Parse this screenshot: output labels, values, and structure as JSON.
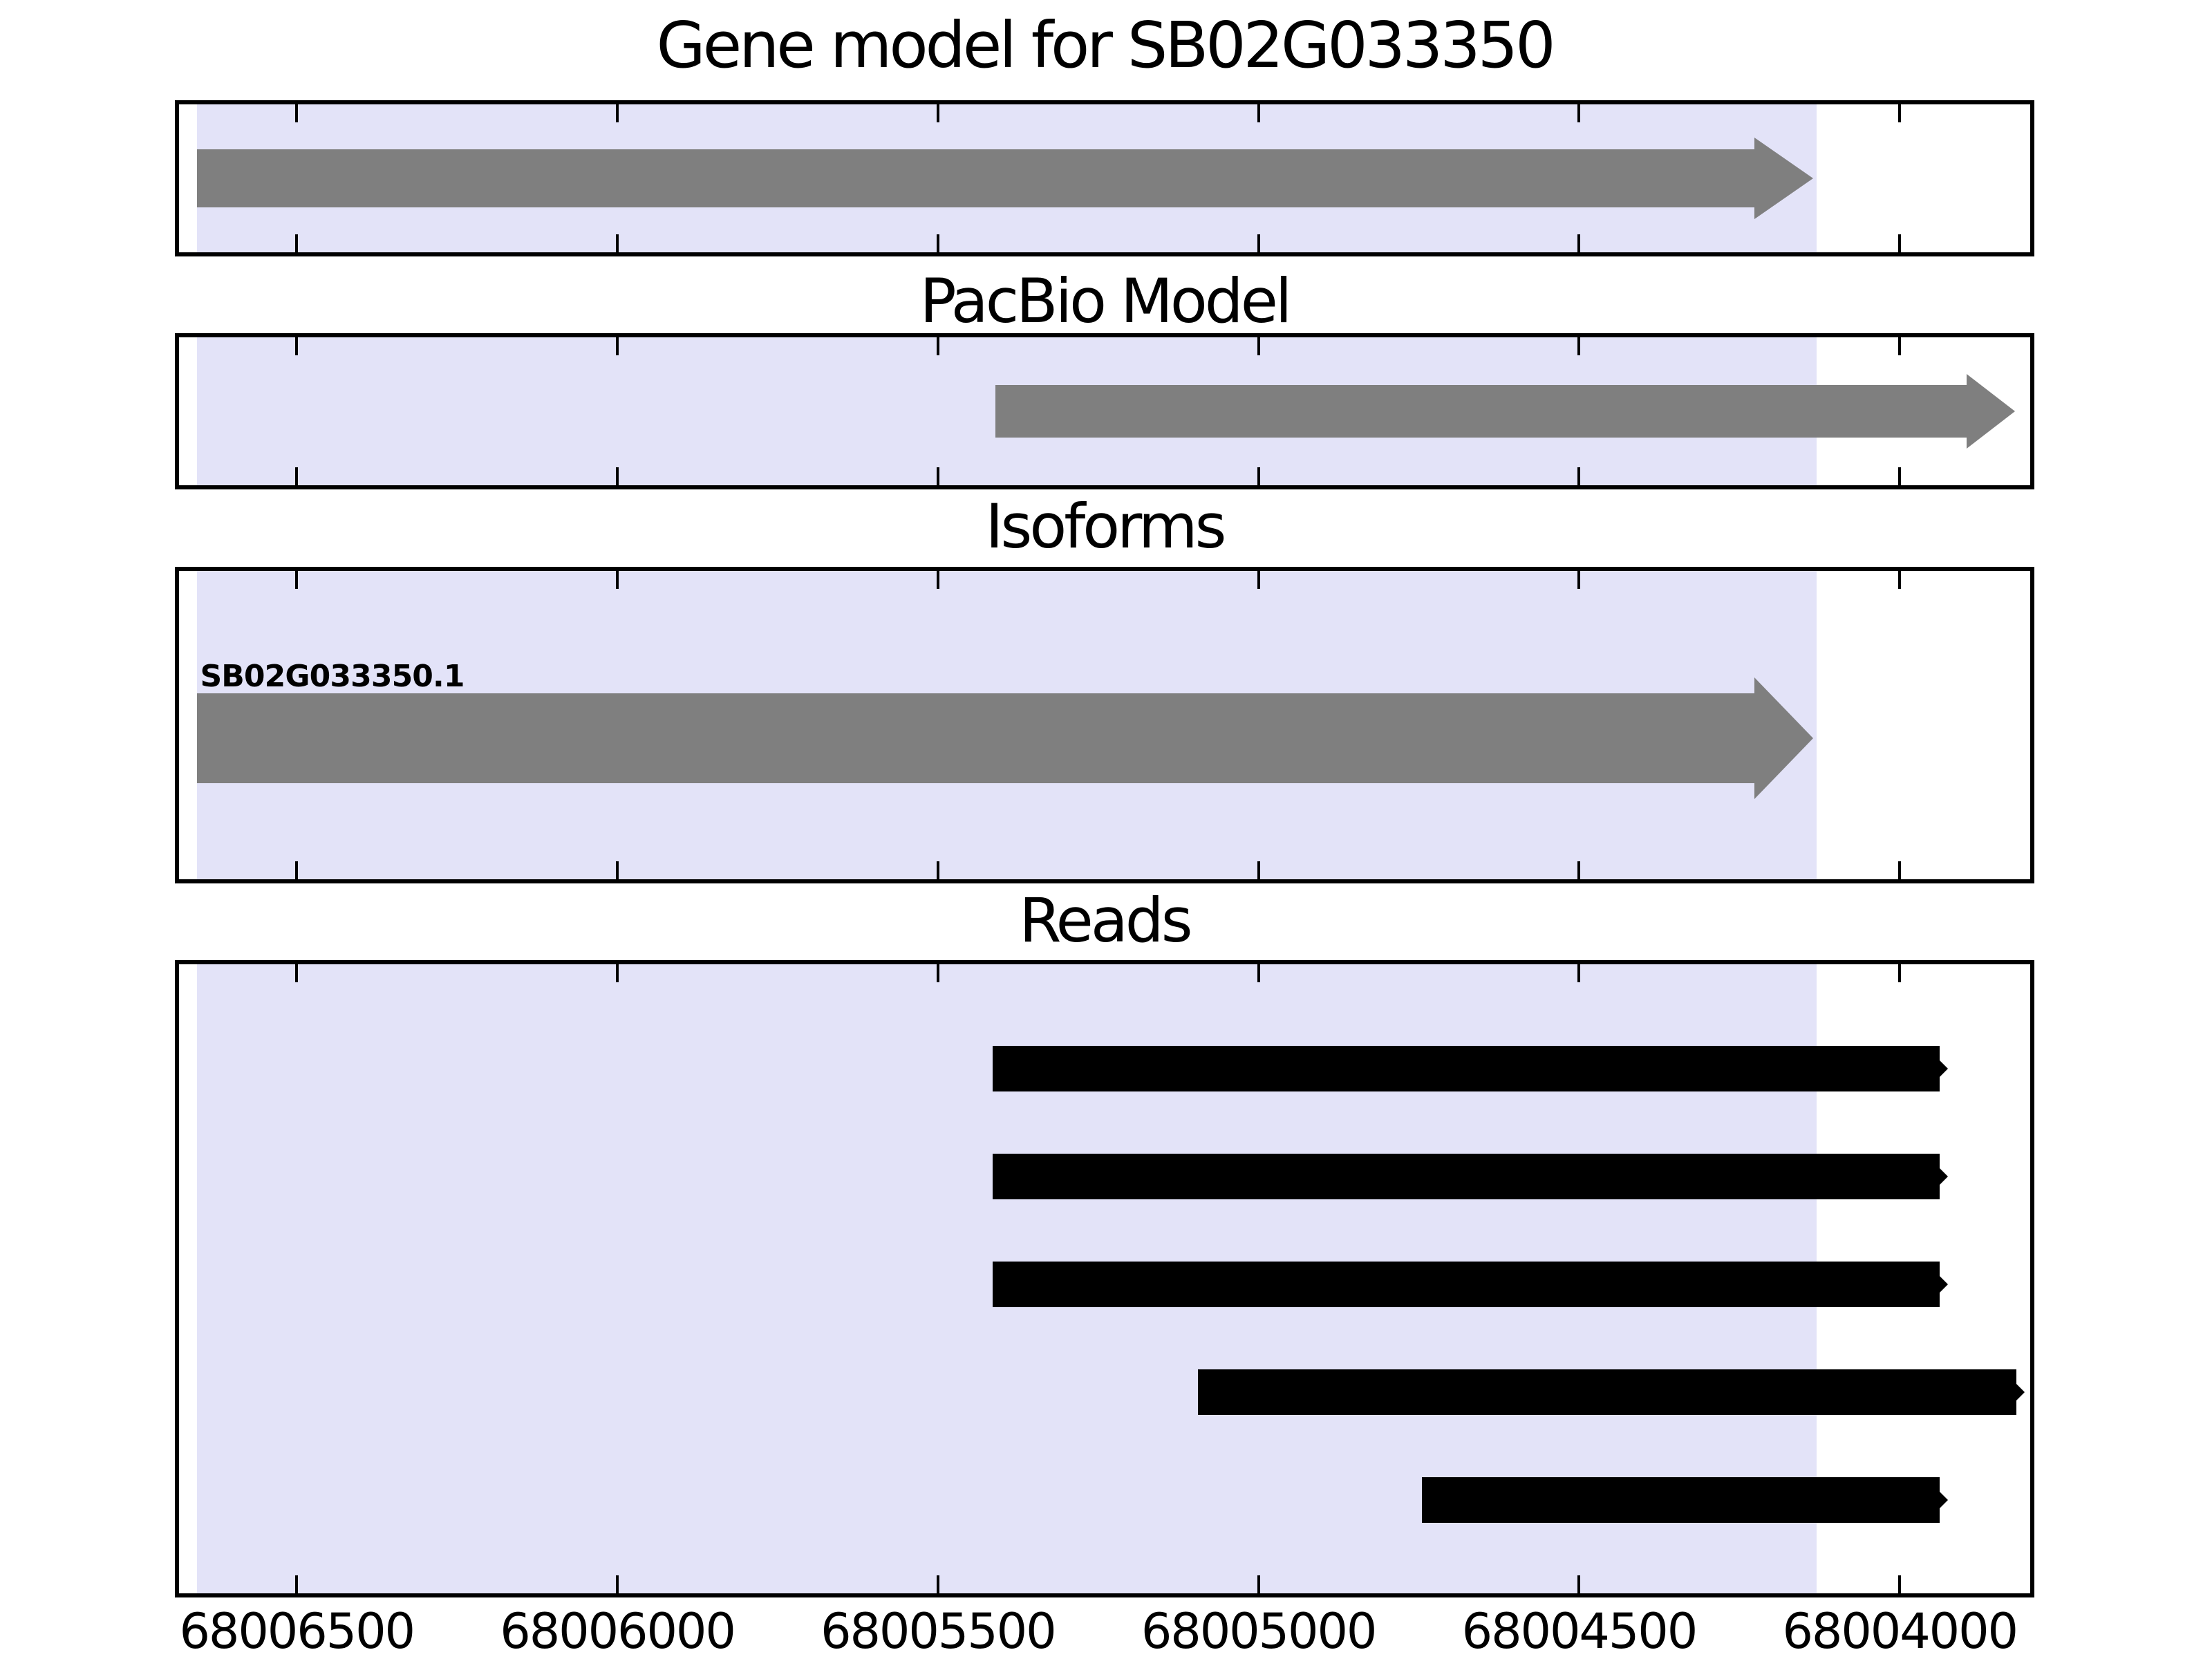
{
  "figure": {
    "background": "#ffffff",
    "colors": {
      "highlight_region": "#e3e3f8",
      "model_bar": "#7f7f7f",
      "read_bar": "#000000",
      "axis_and_text": "#000000"
    }
  },
  "chart_data": {
    "type": "bar",
    "subtype": "genomic-track-plot",
    "grid": false,
    "axis": {
      "reversed": true,
      "xlim_left": 68006690,
      "xlim_right": 68003790,
      "tick_values": [
        68006500,
        68006000,
        68005500,
        68005000,
        68004500,
        68004000
      ],
      "tick_labels": [
        "68006500",
        "68006000",
        "68005500",
        "68005000",
        "68004500",
        "68004000"
      ]
    },
    "highlight_region": {
      "start": 68006655,
      "end": 68004130
    },
    "panels": [
      {
        "id": "gene-model",
        "title": "Gene model for SB02G033350",
        "features": [
          {
            "kind": "arrow",
            "start": 68006655,
            "end": 68004135,
            "color": "#7f7f7f"
          }
        ]
      },
      {
        "id": "pacbio-model",
        "title": "PacBio Model",
        "features": [
          {
            "kind": "arrow",
            "start": 68005410,
            "end": 68003820,
            "color": "#7f7f7f"
          }
        ]
      },
      {
        "id": "isoforms",
        "title": "Isoforms",
        "features": [
          {
            "kind": "arrow",
            "label": "SB02G033350.1",
            "start": 68006655,
            "end": 68004135,
            "color": "#7f7f7f"
          }
        ]
      },
      {
        "id": "reads",
        "title": "Reads",
        "features": [
          {
            "kind": "read",
            "start": 68005415,
            "end": 68003925,
            "color": "#000000"
          },
          {
            "kind": "read",
            "start": 68005415,
            "end": 68003925,
            "color": "#000000"
          },
          {
            "kind": "read",
            "start": 68005415,
            "end": 68003925,
            "color": "#000000"
          },
          {
            "kind": "read",
            "start": 68005095,
            "end": 68003805,
            "color": "#000000"
          },
          {
            "kind": "read",
            "start": 68004745,
            "end": 68003925,
            "color": "#000000"
          }
        ]
      }
    ]
  }
}
